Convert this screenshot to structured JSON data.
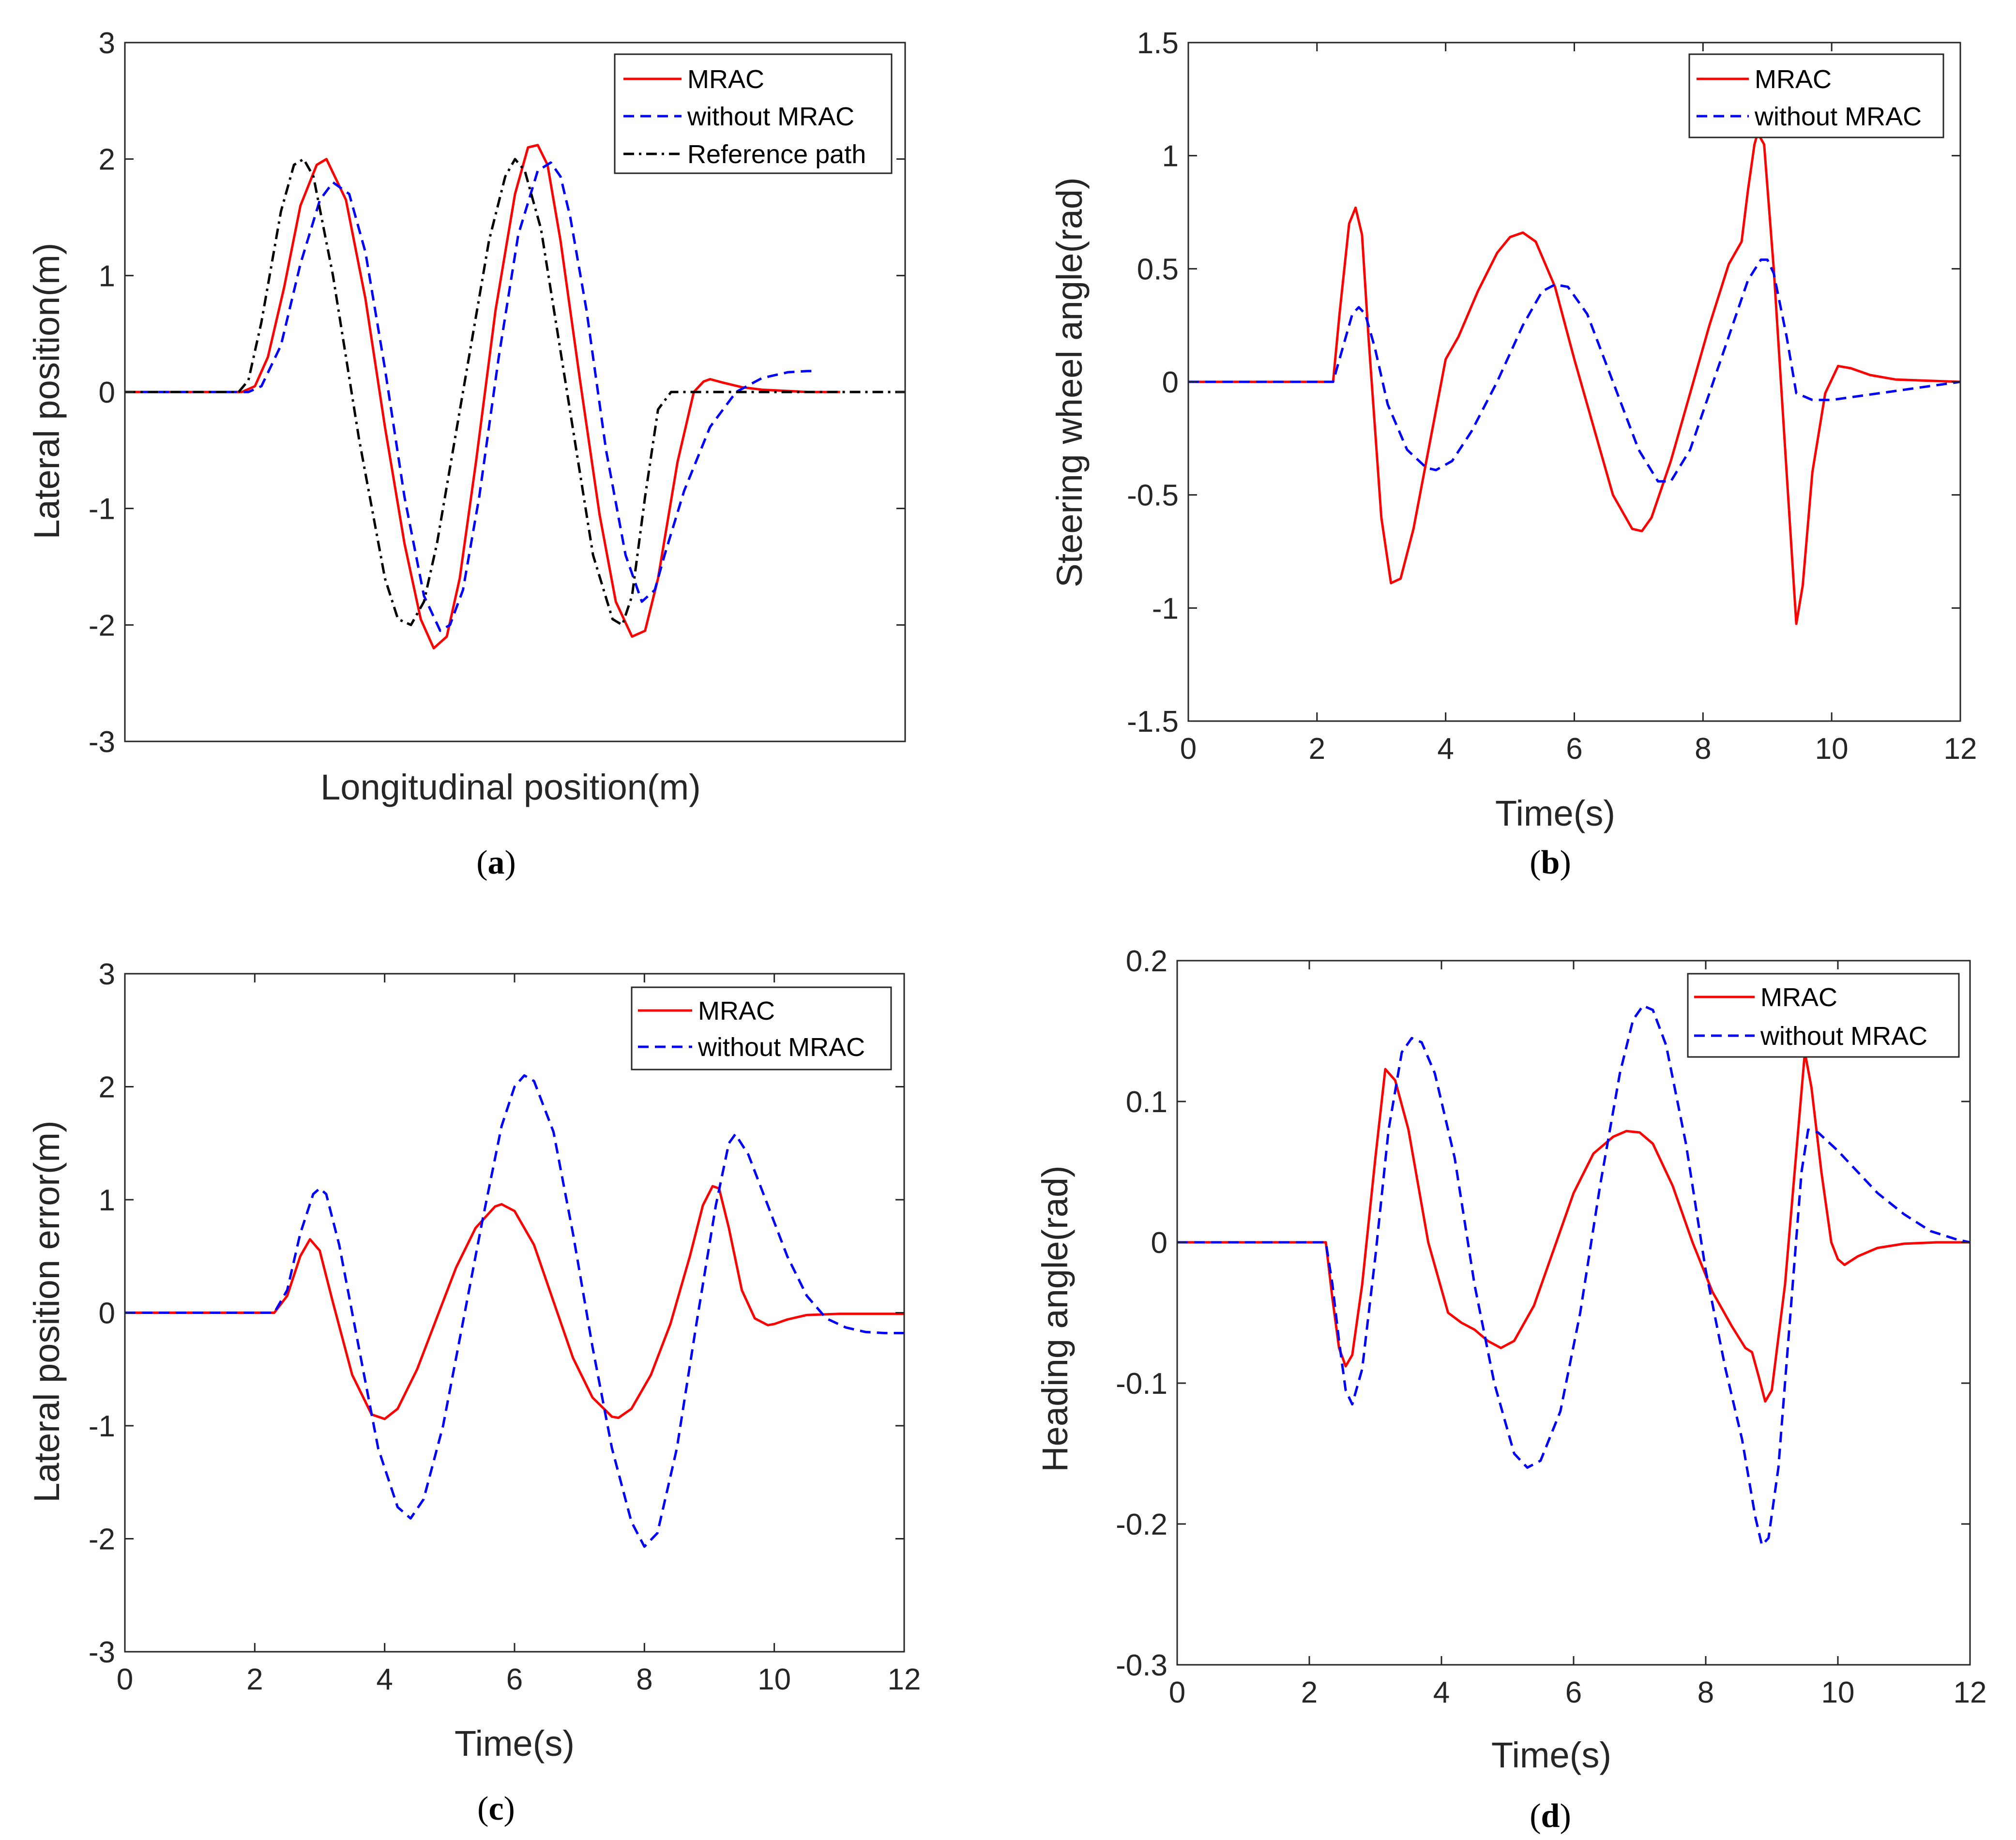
{
  "colors": {
    "mrac": "#ff0000",
    "without_mrac": "#0000ff",
    "reference": "#000000",
    "axis": "#262626"
  },
  "chart_data": [
    {
      "id": "a",
      "type": "line",
      "caption_letter": "a",
      "xlabel": "Longitudinal position(m)",
      "ylabel": "Lateral position(m)",
      "xlim": [
        0,
        12
      ],
      "ylim": [
        -3,
        3
      ],
      "xticks": [],
      "yticks": [
        -3,
        -2,
        -1,
        0,
        1,
        2,
        3
      ],
      "ytick_labels": [
        "-3",
        "-2",
        "-1",
        "0",
        "1",
        "2",
        "3"
      ],
      "legend_location": "top-right",
      "series": [
        {
          "name": "MRAC",
          "style": "solid",
          "color_key": "mrac",
          "x": [
            0,
            1.8,
            2.0,
            2.2,
            2.45,
            2.7,
            2.95,
            3.1,
            3.4,
            3.7,
            4.0,
            4.3,
            4.55,
            4.75,
            4.95,
            5.15,
            5.4,
            5.7,
            6.0,
            6.2,
            6.35,
            6.5,
            6.7,
            7.0,
            7.3,
            7.55,
            7.8,
            8.0,
            8.2,
            8.5,
            8.75,
            8.9,
            9.0,
            9.2,
            9.5,
            9.8,
            10.5,
            11.0
          ],
          "y": [
            0,
            0,
            0.05,
            0.3,
            0.9,
            1.6,
            1.95,
            2.0,
            1.65,
            0.8,
            -0.3,
            -1.3,
            -1.95,
            -2.2,
            -2.1,
            -1.6,
            -0.6,
            0.7,
            1.7,
            2.1,
            2.12,
            1.95,
            1.3,
            0.1,
            -1.05,
            -1.8,
            -2.1,
            -2.05,
            -1.6,
            -0.6,
            0.0,
            0.09,
            0.11,
            0.08,
            0.04,
            0.02,
            0.0,
            0.0
          ]
        },
        {
          "name": "without MRAC",
          "style": "dashed",
          "color_key": "without_mrac",
          "x": [
            0,
            1.9,
            2.1,
            2.4,
            2.7,
            3.0,
            3.2,
            3.45,
            3.7,
            4.0,
            4.3,
            4.6,
            4.85,
            5.0,
            5.2,
            5.45,
            5.75,
            6.05,
            6.35,
            6.55,
            6.7,
            6.85,
            7.1,
            7.4,
            7.7,
            7.95,
            8.15,
            8.3,
            8.6,
            9.0,
            9.4,
            9.8,
            10.2,
            10.5,
            10.65
          ],
          "y": [
            0,
            0,
            0.05,
            0.4,
            1.1,
            1.65,
            1.8,
            1.7,
            1.2,
            0.2,
            -0.9,
            -1.75,
            -2.05,
            -2.0,
            -1.7,
            -0.9,
            0.3,
            1.35,
            1.9,
            1.97,
            1.85,
            1.5,
            0.7,
            -0.5,
            -1.4,
            -1.8,
            -1.7,
            -1.4,
            -0.85,
            -0.3,
            0.0,
            0.12,
            0.17,
            0.18,
            0.18
          ]
        },
        {
          "name": "Reference path",
          "style": "dashdot",
          "color_key": "reference",
          "x": [
            0,
            1.75,
            1.9,
            2.1,
            2.4,
            2.6,
            2.75,
            2.9,
            3.2,
            3.6,
            4.0,
            4.2,
            4.4,
            4.6,
            4.8,
            5.2,
            5.6,
            5.85,
            6.0,
            6.15,
            6.4,
            6.8,
            7.2,
            7.5,
            7.65,
            7.8,
            8.0,
            8.2,
            8.4,
            12.0
          ],
          "y": [
            0,
            0,
            0.1,
            0.6,
            1.55,
            1.95,
            2.0,
            1.85,
            1.0,
            -0.4,
            -1.6,
            -1.95,
            -2.0,
            -1.8,
            -1.3,
            0.0,
            1.3,
            1.85,
            2.0,
            1.9,
            1.4,
            0.0,
            -1.4,
            -1.95,
            -2.0,
            -1.75,
            -0.9,
            -0.15,
            0.0,
            0.0
          ]
        }
      ]
    },
    {
      "id": "b",
      "type": "line",
      "caption_letter": "b",
      "xlabel": "Time(s)",
      "ylabel": "Steering wheel angle(rad)",
      "xlim": [
        0,
        12
      ],
      "ylim": [
        -1.5,
        1.5
      ],
      "xticks": [
        0,
        2,
        4,
        6,
        8,
        10,
        12
      ],
      "xtick_labels": [
        "0",
        "2",
        "4",
        "6",
        "8",
        "10",
        "12"
      ],
      "yticks": [
        -1.5,
        -1,
        -0.5,
        0,
        0.5,
        1,
        1.5
      ],
      "ytick_labels": [
        "-1.5",
        "-1",
        "-0.5",
        "0",
        "0.5",
        "1",
        "1.5"
      ],
      "legend_location": "top-right",
      "series": [
        {
          "name": "MRAC",
          "style": "solid",
          "color_key": "mrac",
          "x": [
            0,
            2.25,
            2.35,
            2.5,
            2.6,
            2.7,
            2.8,
            3.0,
            3.15,
            3.3,
            3.5,
            3.8,
            4.0,
            4.2,
            4.5,
            4.8,
            5.0,
            5.2,
            5.4,
            5.7,
            6.0,
            6.3,
            6.6,
            6.9,
            7.05,
            7.2,
            7.5,
            7.8,
            8.1,
            8.4,
            8.6,
            8.7,
            8.8,
            8.85,
            8.95,
            9.1,
            9.3,
            9.45,
            9.55,
            9.7,
            9.9,
            10.1,
            10.3,
            10.6,
            11.0,
            12.0
          ],
          "y": [
            0,
            0,
            0.3,
            0.7,
            0.77,
            0.65,
            0.2,
            -0.6,
            -0.89,
            -0.87,
            -0.65,
            -0.2,
            0.1,
            0.2,
            0.4,
            0.57,
            0.64,
            0.66,
            0.62,
            0.42,
            0.1,
            -0.2,
            -0.5,
            -0.65,
            -0.66,
            -0.6,
            -0.35,
            -0.05,
            0.25,
            0.52,
            0.62,
            0.85,
            1.05,
            1.1,
            1.05,
            0.5,
            -0.4,
            -1.07,
            -0.9,
            -0.4,
            -0.05,
            0.07,
            0.06,
            0.03,
            0.01,
            0.0
          ]
        },
        {
          "name": "without MRAC",
          "style": "dashed",
          "color_key": "without_mrac",
          "x": [
            0,
            2.25,
            2.4,
            2.55,
            2.65,
            2.75,
            2.9,
            3.1,
            3.4,
            3.7,
            3.85,
            4.1,
            4.4,
            4.8,
            5.2,
            5.5,
            5.7,
            5.9,
            6.2,
            6.6,
            7.0,
            7.3,
            7.5,
            7.8,
            8.1,
            8.4,
            8.7,
            8.9,
            9.0,
            9.1,
            9.3,
            9.45,
            9.7,
            10.0,
            10.5,
            11.0,
            11.5,
            12.0
          ],
          "y": [
            0,
            0,
            0.15,
            0.3,
            0.33,
            0.3,
            0.15,
            -0.1,
            -0.3,
            -0.38,
            -0.39,
            -0.35,
            -0.22,
            0.0,
            0.25,
            0.4,
            0.43,
            0.42,
            0.3,
            0.0,
            -0.3,
            -0.44,
            -0.44,
            -0.3,
            -0.05,
            0.2,
            0.45,
            0.54,
            0.54,
            0.48,
            0.2,
            -0.05,
            -0.08,
            -0.08,
            -0.06,
            -0.04,
            -0.02,
            0.0
          ]
        }
      ]
    },
    {
      "id": "c",
      "type": "line",
      "caption_letter": "c",
      "xlabel": "Time(s)",
      "ylabel": "Lateral position error(m)",
      "xlim": [
        0,
        12
      ],
      "ylim": [
        -3,
        3
      ],
      "xticks": [
        0,
        2,
        4,
        6,
        8,
        10,
        12
      ],
      "xtick_labels": [
        "0",
        "2",
        "4",
        "6",
        "8",
        "10",
        "12"
      ],
      "yticks": [
        -3,
        -2,
        -1,
        0,
        1,
        2,
        3
      ],
      "ytick_labels": [
        "-3",
        "-2",
        "-1",
        "0",
        "1",
        "2",
        "3"
      ],
      "legend_location": "top-right",
      "series": [
        {
          "name": "MRAC",
          "style": "solid",
          "color_key": "mrac",
          "x": [
            0,
            2.3,
            2.5,
            2.7,
            2.85,
            3.0,
            3.2,
            3.5,
            3.8,
            4.0,
            4.2,
            4.5,
            4.8,
            5.1,
            5.4,
            5.7,
            5.8,
            6.0,
            6.3,
            6.6,
            6.9,
            7.2,
            7.5,
            7.6,
            7.8,
            8.1,
            8.4,
            8.7,
            8.9,
            9.05,
            9.15,
            9.3,
            9.5,
            9.7,
            9.9,
            10.0,
            10.2,
            10.5,
            11.0,
            12.0
          ],
          "y": [
            0,
            0,
            0.15,
            0.5,
            0.65,
            0.55,
            0.1,
            -0.55,
            -0.9,
            -0.94,
            -0.85,
            -0.5,
            -0.05,
            0.4,
            0.75,
            0.94,
            0.96,
            0.9,
            0.6,
            0.1,
            -0.4,
            -0.75,
            -0.92,
            -0.93,
            -0.85,
            -0.55,
            -0.1,
            0.5,
            0.95,
            1.12,
            1.1,
            0.75,
            0.2,
            -0.05,
            -0.11,
            -0.1,
            -0.06,
            -0.02,
            -0.01,
            -0.01
          ]
        },
        {
          "name": "without MRAC",
          "style": "dashed",
          "color_key": "without_mrac",
          "x": [
            0,
            2.3,
            2.5,
            2.7,
            2.9,
            3.0,
            3.1,
            3.3,
            3.6,
            3.9,
            4.2,
            4.4,
            4.6,
            4.9,
            5.2,
            5.5,
            5.8,
            6.0,
            6.15,
            6.3,
            6.6,
            6.9,
            7.2,
            7.5,
            7.8,
            8.0,
            8.2,
            8.5,
            8.8,
            9.1,
            9.3,
            9.4,
            9.6,
            9.9,
            10.2,
            10.5,
            10.8,
            11.1,
            11.4,
            11.7,
            12.0
          ],
          "y": [
            0,
            0,
            0.2,
            0.7,
            1.05,
            1.1,
            1.05,
            0.6,
            -0.3,
            -1.2,
            -1.72,
            -1.82,
            -1.65,
            -1.0,
            -0.1,
            0.8,
            1.65,
            2.0,
            2.1,
            2.05,
            1.6,
            0.7,
            -0.3,
            -1.2,
            -1.85,
            -2.07,
            -1.95,
            -1.2,
            -0.1,
            0.95,
            1.5,
            1.58,
            1.4,
            0.95,
            0.5,
            0.15,
            -0.05,
            -0.13,
            -0.17,
            -0.18,
            -0.18
          ]
        }
      ]
    },
    {
      "id": "d",
      "type": "line",
      "caption_letter": "d",
      "xlabel": "Time(s)",
      "ylabel": "Heading angle(rad)",
      "xlim": [
        0,
        12
      ],
      "ylim": [
        -0.3,
        0.2
      ],
      "xticks": [
        0,
        2,
        4,
        6,
        8,
        10,
        12
      ],
      "xtick_labels": [
        "0",
        "2",
        "4",
        "6",
        "8",
        "10",
        "12"
      ],
      "yticks": [
        -0.3,
        -0.2,
        -0.1,
        0,
        0.1,
        0.2
      ],
      "ytick_labels": [
        "-0.3",
        "-0.2",
        "-0.1",
        "0",
        "0.1",
        "0.2"
      ],
      "legend_location": "top-right",
      "series": [
        {
          "name": "MRAC",
          "style": "solid",
          "color_key": "mrac",
          "x": [
            0,
            2.25,
            2.35,
            2.45,
            2.55,
            2.65,
            2.8,
            3.0,
            3.15,
            3.3,
            3.5,
            3.8,
            4.1,
            4.3,
            4.5,
            4.7,
            4.9,
            5.1,
            5.4,
            5.7,
            6.0,
            6.3,
            6.6,
            6.8,
            7.0,
            7.2,
            7.5,
            7.8,
            8.1,
            8.4,
            8.6,
            8.7,
            8.8,
            8.9,
            9.0,
            9.2,
            9.4,
            9.5,
            9.6,
            9.75,
            9.9,
            10.0,
            10.1,
            10.3,
            10.6,
            11.0,
            11.5,
            12.0
          ],
          "y": [
            0,
            0,
            -0.04,
            -0.075,
            -0.088,
            -0.08,
            -0.03,
            0.06,
            0.123,
            0.115,
            0.08,
            0.0,
            -0.05,
            -0.057,
            -0.062,
            -0.07,
            -0.075,
            -0.07,
            -0.045,
            -0.005,
            0.035,
            0.063,
            0.075,
            0.079,
            0.078,
            0.07,
            0.04,
            0.0,
            -0.035,
            -0.06,
            -0.075,
            -0.078,
            -0.095,
            -0.113,
            -0.105,
            -0.03,
            0.08,
            0.135,
            0.11,
            0.05,
            0.0,
            -0.012,
            -0.016,
            -0.01,
            -0.004,
            -0.001,
            0.0,
            0.0
          ]
        },
        {
          "name": "without MRAC",
          "style": "dashed",
          "color_key": "without_mrac",
          "x": [
            0,
            2.25,
            2.35,
            2.45,
            2.55,
            2.65,
            2.8,
            3.0,
            3.2,
            3.4,
            3.55,
            3.7,
            3.9,
            4.2,
            4.5,
            4.8,
            5.1,
            5.3,
            5.5,
            5.8,
            6.1,
            6.4,
            6.7,
            6.9,
            7.05,
            7.2,
            7.4,
            7.7,
            8.0,
            8.3,
            8.55,
            8.75,
            8.85,
            8.95,
            9.1,
            9.3,
            9.45,
            9.55,
            9.7,
            10.0,
            10.3,
            10.6,
            11.0,
            11.4,
            11.8,
            12.0
          ],
          "y": [
            0,
            0,
            -0.03,
            -0.07,
            -0.105,
            -0.115,
            -0.09,
            -0.01,
            0.08,
            0.135,
            0.145,
            0.142,
            0.12,
            0.06,
            -0.03,
            -0.1,
            -0.15,
            -0.16,
            -0.155,
            -0.12,
            -0.05,
            0.04,
            0.12,
            0.158,
            0.168,
            0.165,
            0.14,
            0.07,
            -0.02,
            -0.09,
            -0.14,
            -0.195,
            -0.215,
            -0.21,
            -0.16,
            -0.04,
            0.05,
            0.08,
            0.078,
            0.065,
            0.05,
            0.035,
            0.02,
            0.008,
            0.002,
            0.0
          ]
        }
      ]
    }
  ]
}
